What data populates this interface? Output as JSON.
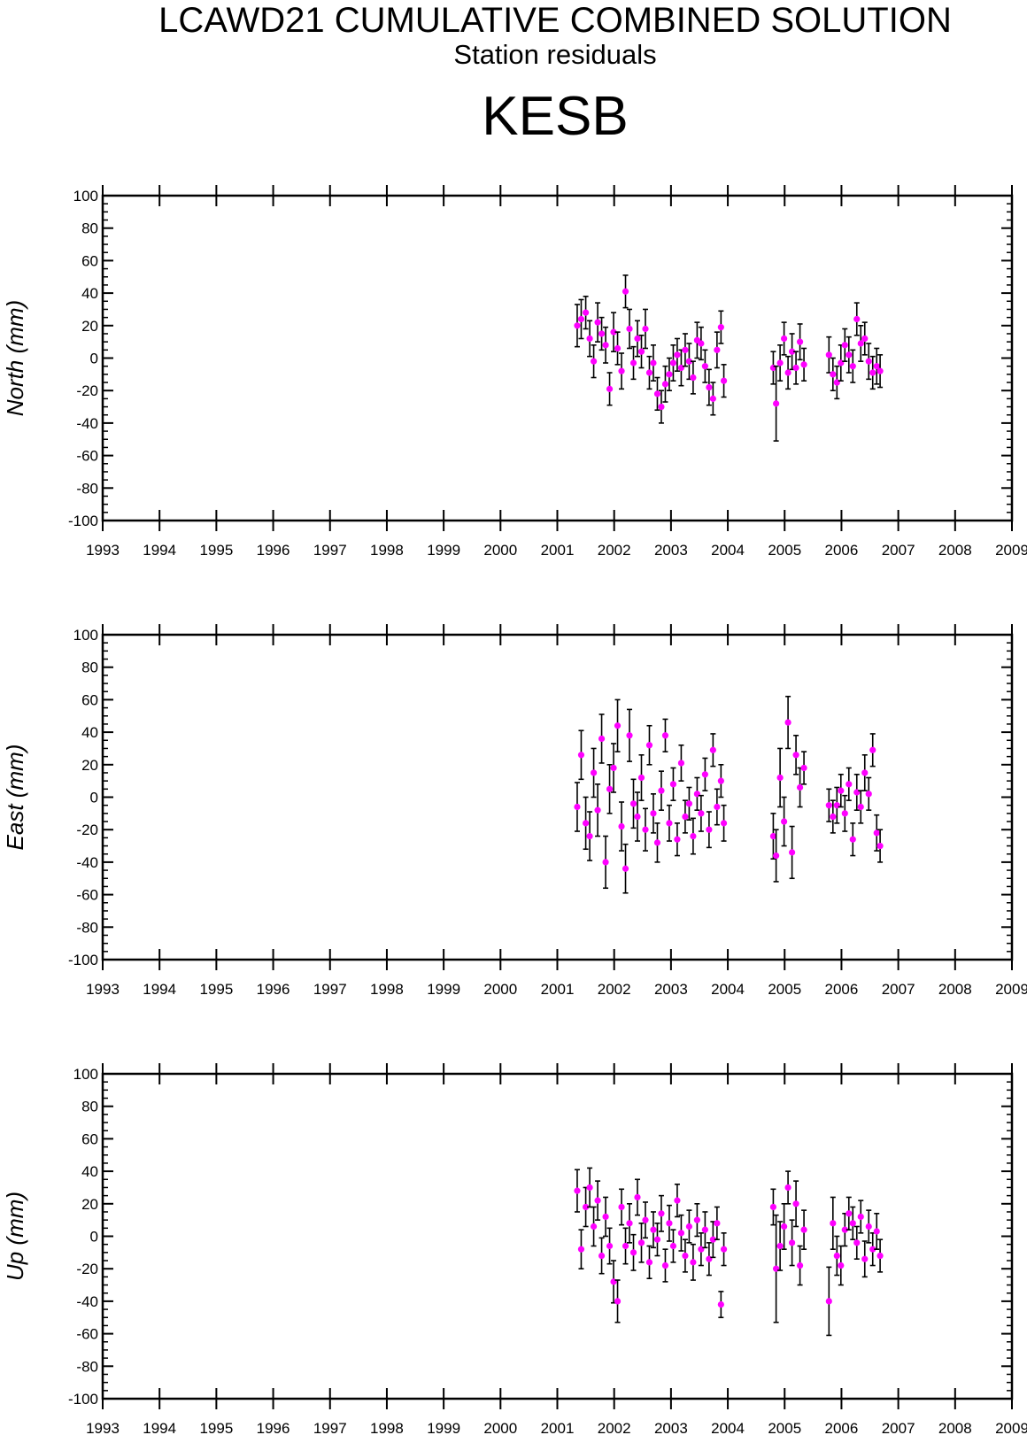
{
  "header": {
    "title": "LCAWD21 CUMULATIVE COMBINED SOLUTION",
    "subtitle": "Station residuals",
    "station": "KESB"
  },
  "colors": {
    "point": "#ff00ff",
    "errorbar": "#000000",
    "axis": "#000000"
  },
  "chart_data": [
    {
      "type": "scatter",
      "ylabel": "North (mm)",
      "xlim": [
        1993,
        2009
      ],
      "ylim": [
        -100,
        100
      ],
      "x_ticks": [
        "1993",
        "1994",
        "1995",
        "1996",
        "1997",
        "1998",
        "1999",
        "2000",
        "2001",
        "2002",
        "2003",
        "2004",
        "2005",
        "2006",
        "2007",
        "2008",
        "2009"
      ],
      "y_ticks": [
        "100",
        "80",
        "60",
        "40",
        "20",
        "0",
        "-20",
        "-40",
        "-60",
        "-80",
        "-100"
      ],
      "series": [
        {
          "points": [
            [
              2001.35,
              20,
              13
            ],
            [
              2001.42,
              24,
              12
            ],
            [
              2001.5,
              28,
              10
            ],
            [
              2001.57,
              12,
              11
            ],
            [
              2001.64,
              -2,
              10
            ],
            [
              2001.71,
              22,
              12
            ],
            [
              2001.78,
              15,
              10
            ],
            [
              2001.85,
              8,
              11
            ],
            [
              2001.92,
              -19,
              10
            ],
            [
              2001.99,
              16,
              12
            ],
            [
              2002.06,
              6,
              10
            ],
            [
              2002.13,
              -8,
              11
            ],
            [
              2002.2,
              41,
              10
            ],
            [
              2002.27,
              18,
              12
            ],
            [
              2002.34,
              -3,
              10
            ],
            [
              2002.41,
              12,
              11
            ],
            [
              2002.48,
              4,
              10
            ],
            [
              2002.55,
              18,
              12
            ],
            [
              2002.62,
              -9,
              10
            ],
            [
              2002.69,
              -3,
              11
            ],
            [
              2002.76,
              -22,
              10
            ],
            [
              2002.83,
              -30,
              10
            ],
            [
              2002.9,
              -16,
              11
            ],
            [
              2002.97,
              -10,
              10
            ],
            [
              2003.04,
              -3,
              11
            ],
            [
              2003.11,
              2,
              10
            ],
            [
              2003.18,
              -6,
              11
            ],
            [
              2003.25,
              5,
              10
            ],
            [
              2003.32,
              -2,
              11
            ],
            [
              2003.39,
              -12,
              10
            ],
            [
              2003.46,
              11,
              11
            ],
            [
              2003.53,
              9,
              10
            ],
            [
              2003.6,
              -5,
              10
            ],
            [
              2003.67,
              -18,
              11
            ],
            [
              2003.74,
              -25,
              10
            ],
            [
              2003.81,
              5,
              11
            ],
            [
              2003.88,
              19,
              10
            ],
            [
              2003.93,
              -14,
              10
            ],
            [
              2004.8,
              -6,
              10
            ],
            [
              2004.85,
              -28,
              23
            ],
            [
              2004.92,
              -3,
              11
            ],
            [
              2004.99,
              12,
              10
            ],
            [
              2005.06,
              -9,
              10
            ],
            [
              2005.13,
              4,
              11
            ],
            [
              2005.2,
              -6,
              10
            ],
            [
              2005.27,
              10,
              11
            ],
            [
              2005.34,
              -4,
              10
            ],
            [
              2005.78,
              2,
              11
            ],
            [
              2005.85,
              -10,
              10
            ],
            [
              2005.92,
              -15,
              10
            ],
            [
              2005.99,
              -3,
              11
            ],
            [
              2006.06,
              8,
              10
            ],
            [
              2006.13,
              2,
              11
            ],
            [
              2006.2,
              -5,
              10
            ],
            [
              2006.27,
              24,
              10
            ],
            [
              2006.34,
              9,
              11
            ],
            [
              2006.41,
              12,
              10
            ],
            [
              2006.48,
              -2,
              11
            ],
            [
              2006.55,
              -9,
              10
            ],
            [
              2006.62,
              -5,
              11
            ],
            [
              2006.68,
              -8,
              10
            ]
          ]
        }
      ]
    },
    {
      "type": "scatter",
      "ylabel": "East (mm)",
      "xlim": [
        1993,
        2009
      ],
      "ylim": [
        -100,
        100
      ],
      "x_ticks": [
        "1993",
        "1994",
        "1995",
        "1996",
        "1997",
        "1998",
        "1999",
        "2000",
        "2001",
        "2002",
        "2003",
        "2004",
        "2005",
        "2006",
        "2007",
        "2008",
        "2009"
      ],
      "y_ticks": [
        "100",
        "80",
        "60",
        "40",
        "20",
        "0",
        "-20",
        "-40",
        "-60",
        "-80",
        "-100"
      ],
      "series": [
        {
          "points": [
            [
              2001.35,
              -6,
              15
            ],
            [
              2001.42,
              26,
              15
            ],
            [
              2001.5,
              -16,
              16
            ],
            [
              2001.57,
              -24,
              15
            ],
            [
              2001.64,
              15,
              15
            ],
            [
              2001.71,
              -8,
              16
            ],
            [
              2001.78,
              36,
              15
            ],
            [
              2001.85,
              -40,
              16
            ],
            [
              2001.92,
              5,
              15
            ],
            [
              2001.99,
              18,
              15
            ],
            [
              2002.06,
              44,
              16
            ],
            [
              2002.13,
              -18,
              15
            ],
            [
              2002.2,
              -44,
              15
            ],
            [
              2002.27,
              38,
              16
            ],
            [
              2002.34,
              -4,
              15
            ],
            [
              2002.41,
              -12,
              15
            ],
            [
              2002.48,
              12,
              14
            ],
            [
              2002.55,
              -20,
              13
            ],
            [
              2002.62,
              32,
              12
            ],
            [
              2002.69,
              -10,
              12
            ],
            [
              2002.76,
              -28,
              12
            ],
            [
              2002.83,
              4,
              12
            ],
            [
              2002.9,
              38,
              10
            ],
            [
              2002.97,
              -16,
              11
            ],
            [
              2003.04,
              8,
              10
            ],
            [
              2003.11,
              -26,
              10
            ],
            [
              2003.18,
              21,
              11
            ],
            [
              2003.25,
              -12,
              10
            ],
            [
              2003.32,
              -4,
              10
            ],
            [
              2003.39,
              -24,
              11
            ],
            [
              2003.46,
              2,
              10
            ],
            [
              2003.53,
              -10,
              11
            ],
            [
              2003.6,
              14,
              10
            ],
            [
              2003.67,
              -20,
              11
            ],
            [
              2003.74,
              29,
              10
            ],
            [
              2003.81,
              -6,
              11
            ],
            [
              2003.88,
              10,
              10
            ],
            [
              2003.93,
              -16,
              11
            ],
            [
              2004.8,
              -24,
              14
            ],
            [
              2004.85,
              -36,
              16
            ],
            [
              2004.92,
              12,
              18
            ],
            [
              2004.99,
              -15,
              15
            ],
            [
              2005.06,
              46,
              16
            ],
            [
              2005.13,
              -34,
              16
            ],
            [
              2005.2,
              26,
              12
            ],
            [
              2005.27,
              6,
              12
            ],
            [
              2005.34,
              18,
              10
            ],
            [
              2005.78,
              -5,
              10
            ],
            [
              2005.85,
              -12,
              10
            ],
            [
              2005.92,
              -5,
              11
            ],
            [
              2005.99,
              4,
              10
            ],
            [
              2006.06,
              -10,
              11
            ],
            [
              2006.13,
              8,
              10
            ],
            [
              2006.2,
              -26,
              10
            ],
            [
              2006.27,
              3,
              11
            ],
            [
              2006.34,
              -6,
              10
            ],
            [
              2006.41,
              15,
              11
            ],
            [
              2006.48,
              2,
              10
            ],
            [
              2006.55,
              29,
              10
            ],
            [
              2006.62,
              -22,
              11
            ],
            [
              2006.68,
              -30,
              10
            ]
          ]
        }
      ]
    },
    {
      "type": "scatter",
      "ylabel": "Up (mm)",
      "xlim": [
        1993,
        2009
      ],
      "ylim": [
        -100,
        100
      ],
      "x_ticks": [
        "1993",
        "1994",
        "1995",
        "1996",
        "1997",
        "1998",
        "1999",
        "2000",
        "2001",
        "2002",
        "2003",
        "2004",
        "2005",
        "2006",
        "2007",
        "2008",
        "2009"
      ],
      "y_ticks": [
        "100",
        "80",
        "60",
        "40",
        "20",
        "0",
        "-20",
        "-40",
        "-60",
        "-80",
        "-100"
      ],
      "series": [
        {
          "points": [
            [
              2001.35,
              28,
              13
            ],
            [
              2001.42,
              -8,
              12
            ],
            [
              2001.5,
              18,
              12
            ],
            [
              2001.57,
              30,
              12
            ],
            [
              2001.64,
              6,
              12
            ],
            [
              2001.71,
              22,
              12
            ],
            [
              2001.78,
              -12,
              11
            ],
            [
              2001.85,
              12,
              12
            ],
            [
              2001.92,
              -6,
              11
            ],
            [
              2001.99,
              -28,
              13
            ],
            [
              2002.06,
              -40,
              13
            ],
            [
              2002.13,
              18,
              11
            ],
            [
              2002.2,
              -6,
              11
            ],
            [
              2002.27,
              8,
              12
            ],
            [
              2002.34,
              -10,
              11
            ],
            [
              2002.41,
              24,
              11
            ],
            [
              2002.48,
              -4,
              12
            ],
            [
              2002.55,
              10,
              11
            ],
            [
              2002.62,
              -16,
              10
            ],
            [
              2002.69,
              4,
              11
            ],
            [
              2002.76,
              -2,
              10
            ],
            [
              2002.83,
              14,
              11
            ],
            [
              2002.9,
              -18,
              10
            ],
            [
              2002.97,
              8,
              11
            ],
            [
              2003.04,
              -6,
              10
            ],
            [
              2003.11,
              22,
              10
            ],
            [
              2003.18,
              2,
              11
            ],
            [
              2003.25,
              -12,
              10
            ],
            [
              2003.32,
              6,
              10
            ],
            [
              2003.39,
              -16,
              11
            ],
            [
              2003.46,
              10,
              10
            ],
            [
              2003.53,
              -8,
              10
            ],
            [
              2003.6,
              4,
              11
            ],
            [
              2003.67,
              -14,
              10
            ],
            [
              2003.74,
              -2,
              11
            ],
            [
              2003.81,
              8,
              10
            ],
            [
              2003.88,
              -42,
              8
            ],
            [
              2003.93,
              -8,
              10
            ],
            [
              2004.8,
              18,
              11
            ],
            [
              2004.85,
              -20,
              33
            ],
            [
              2004.92,
              -6,
              15
            ],
            [
              2004.99,
              6,
              14
            ],
            [
              2005.06,
              30,
              10
            ],
            [
              2005.13,
              -4,
              14
            ],
            [
              2005.2,
              20,
              14
            ],
            [
              2005.27,
              -18,
              12
            ],
            [
              2005.34,
              4,
              12
            ],
            [
              2005.78,
              -40,
              21
            ],
            [
              2005.85,
              8,
              16
            ],
            [
              2005.92,
              -12,
              12
            ],
            [
              2005.99,
              -18,
              12
            ],
            [
              2006.06,
              4,
              10
            ],
            [
              2006.13,
              14,
              10
            ],
            [
              2006.2,
              8,
              10
            ],
            [
              2006.27,
              -4,
              10
            ],
            [
              2006.34,
              12,
              10
            ],
            [
              2006.41,
              -14,
              11
            ],
            [
              2006.48,
              6,
              10
            ],
            [
              2006.55,
              -8,
              10
            ],
            [
              2006.62,
              3,
              11
            ],
            [
              2006.68,
              -12,
              10
            ]
          ]
        }
      ]
    }
  ]
}
